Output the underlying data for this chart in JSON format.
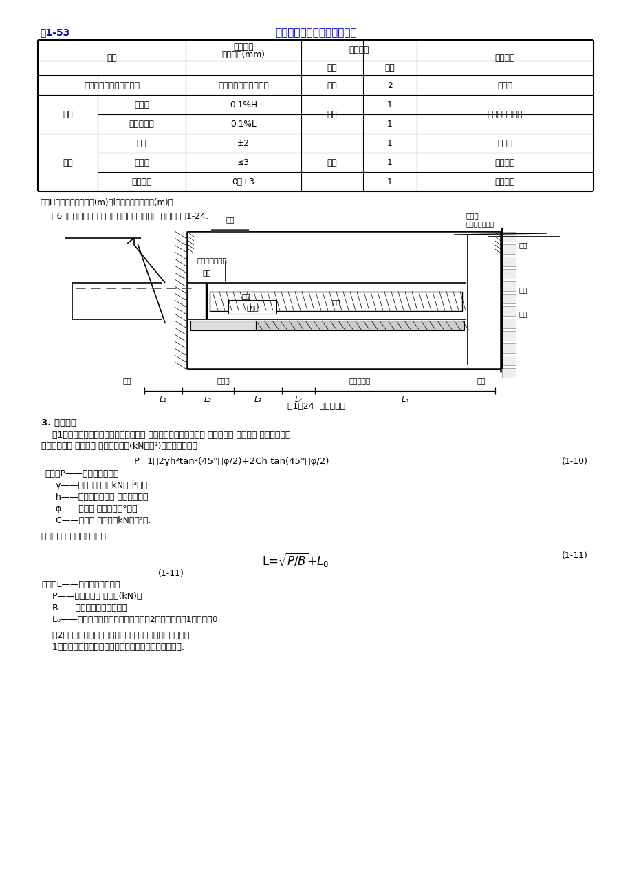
{
  "title_left": "表1-53",
  "title_center": "顶管工作竖井及设备允许偏差",
  "note": "注：H为后背的垂直高度(m)；l为后背的水平长度(m)。",
  "section6": "（6）工作竖井内的 布置：一般工作竖井内的 布置参见图1-24.",
  "fig_caption": "图1－24  工作坑断面",
  "section3_title": "3. 后背安装",
  "para1a": "    （1）核算后背受力宽度，应根据需要的 总顶力，使土壁单位宽度 内受力不大 于土壤的 总被动土压力.",
  "para1b": "后背每米宽度 上土壤的 总被动土压力(kN／米²)可按下式计算：",
  "formula1": "P=1／2γh²tan²(45°＋φ/2)+2Ch tan(45°＋φ/2)",
  "formula1_num": "(1-10)",
  "formula_vars": [
    "式中：P——总被动土压力；",
    "    γ——土壤的 重度（kN／米³）；",
    "    h——天然土壁后背的 高度（米）；",
    "    φ——土壤的 内摩擦角（°）；",
    "    C——土壤的 粘聚力（kN／米²）."
  ],
  "para2": "后背长度 可采用下式核算：",
  "formula2_num": "(1-11)",
  "formula2_vars": [
    "式中：L——后背长度（米）；",
    "    P——顶管需要的 总顶力(kN)；",
    "    B——后背受力宽度（米）；",
    "    L₀——附加安全长度（米），砂土可取2；亚砂土可取1；粘土取0."
  ],
  "para3": "    （2）采用原土作后背时，后背墙的 安装应符合下列要求：",
  "para4": "    1）后背土壁应铲修平整，并使壁面与管道顶进方向垂直.",
  "bg_color": "#ffffff",
  "title_color": "#0000cc"
}
